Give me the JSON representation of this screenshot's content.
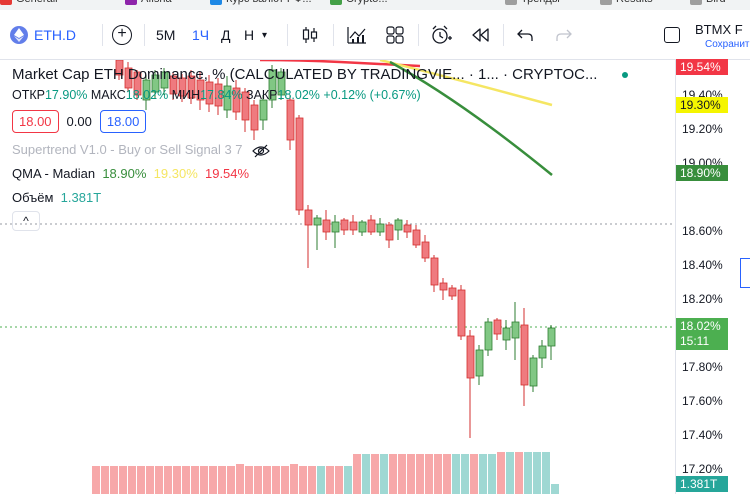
{
  "bookmarks": [
    {
      "label": "Generali",
      "color": "#e53935"
    },
    {
      "label": "Afisha",
      "color": "#8e24aa"
    },
    {
      "label": "Курс валют РФ...",
      "color": "#1e88e5"
    },
    {
      "label": "Crypto...",
      "color": "#43a047"
    },
    {
      "label": "Тренды",
      "color": "#9e9e9e"
    },
    {
      "label": "Results",
      "color": "#9e9e9e"
    },
    {
      "label": "Bird",
      "color": "#9e9e9e"
    }
  ],
  "toolbar": {
    "symbol": "ETH.D",
    "add_icon": "plus-circle-icon",
    "intervals": [
      "5M",
      "1Ч",
      "Д",
      "Н"
    ],
    "active_interval": "1Ч",
    "candle_icon": "candlestick-icon",
    "indicators_icon": "indicators-icon",
    "layout_icon": "layout-grid-icon",
    "alert_icon": "alarm-clock-icon",
    "replay_icon": "replay-icon",
    "undo_icon": "undo-icon",
    "redo_icon": "redo-icon",
    "right_title": "BTMX F",
    "right_sub": "Сохранит"
  },
  "legend": {
    "title": "Market Cap ETH Dominance, % (CALCULATED BY TRADINGVIE...",
    "interval": "· 1...",
    "source": "· CRYPTOC...",
    "ohlc": {
      "open_label": "ОТКР",
      "open": "17.90%",
      "high_label": "МАКС",
      "high": "18.02%",
      "low_label": "МИН",
      "low": "17.84%",
      "close_label": "ЗАКР",
      "close": "18.02%",
      "change": "+0.12% (+0.67%)"
    },
    "bid": "18.00",
    "spread": "0.00",
    "ask": "18.00",
    "supertrend": "Supertrend V1.0 - Buy or Sell Signal 3 7",
    "supertrend_icon": "eye-crossed-icon",
    "qma_label": "QMA - Madian",
    "qma_values": [
      "18.90%",
      "19.30%",
      "19.54%"
    ],
    "qma_colors": [
      "#388e3c",
      "#f5e663",
      "#f23645"
    ],
    "volume_label": "Объём",
    "volume_value": "1.381T",
    "collapse_icon": "chevron-up-icon"
  },
  "price_scale": {
    "ticks": [
      "19.40%",
      "19.20%",
      "19.00%",
      "18.60%",
      "18.40%",
      "18.20%",
      "17.80%",
      "17.60%",
      "17.40%",
      "17.20%"
    ],
    "tag_red": "19.54%",
    "tag_yellow": "19.30%",
    "tag_green": "18.90%",
    "current_price": "18.02%",
    "countdown": "15:11",
    "volume_tag": "1.381T"
  },
  "colors": {
    "up": "#4caf50",
    "up_body": "#81c784",
    "down": "#f23645",
    "down_body": "#ef7a7f",
    "vol_up": "#9fd8d3",
    "vol_down": "#f7a8a9",
    "accent": "#2962ff"
  }
}
